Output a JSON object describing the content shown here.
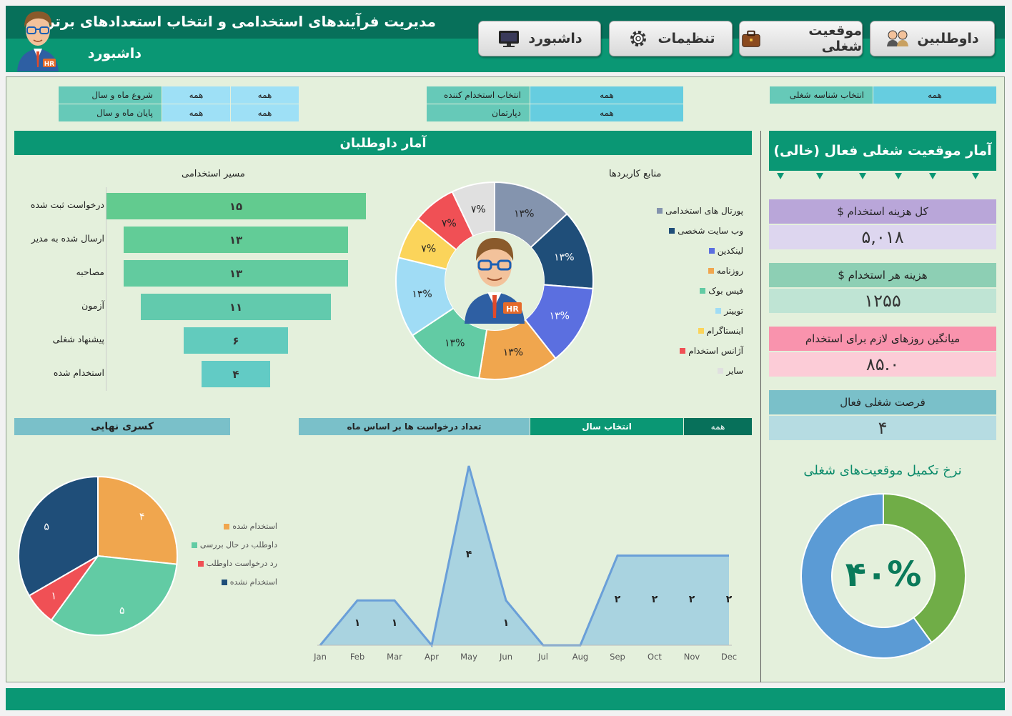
{
  "header": {
    "title": "مدیریت فرآیندهای استخدامی و انتخاب استعدادهای برتر",
    "subtitle": "داشبورد",
    "avatar_badge": "HR",
    "nav": [
      {
        "label": "داوطلبین",
        "icon": "candidates-icon"
      },
      {
        "label": "موقعیت شغلی",
        "icon": "briefcase-icon"
      },
      {
        "label": "تنظیمات",
        "icon": "gear-icon"
      },
      {
        "label": "داشبورد",
        "icon": "monitor-icon"
      }
    ]
  },
  "filters": {
    "start_label": "شروع ماه و سال",
    "start_month": "همه",
    "start_year": "همه",
    "end_label": "پایان ماه و سال",
    "end_month": "همه",
    "end_year": "همه",
    "hiring_manager_label": "انتخاب استخدام کننده",
    "hiring_manager_value": "همه",
    "department_label": "دپارتمان",
    "department_value": "همه",
    "job_id_label": "انتخاب شناسه شغلی",
    "job_id_value": "همه"
  },
  "candidate_stats": {
    "title": "آمار داوطلبان",
    "funnel_title": "مسیر استخدامی",
    "sources_title": "منابع کاربردها"
  },
  "funnel": [
    {
      "label": "درخواست ثبت شده",
      "value": "۱۵",
      "n": 15,
      "color": "#62cb8f"
    },
    {
      "label": "ارسال شده به مدیر",
      "value": "۱۳",
      "n": 13,
      "color": "#62cc97"
    },
    {
      "label": "مصاحبه",
      "value": "۱۳",
      "n": 13,
      "color": "#62cb9f"
    },
    {
      "label": "آزمون",
      "value": "۱۱",
      "n": 11,
      "color": "#62caad"
    },
    {
      "label": "پیشنهاد شغلی",
      "value": "۶",
      "n": 6,
      "color": "#62cbbd"
    },
    {
      "label": "استخدام شده",
      "value": "۴",
      "n": 4,
      "color": "#62cbc5"
    }
  ],
  "sources": {
    "center_badge": "HR",
    "items": [
      {
        "label": "پورتال های استخدامی",
        "pct": "۱۳%",
        "value": 13,
        "color": "#8494ae"
      },
      {
        "label": "وب سایت شخصی",
        "pct": "۱۳%",
        "value": 13,
        "color": "#1f4e79"
      },
      {
        "label": "لینکدین",
        "pct": "۱۳%",
        "value": 13,
        "color": "#5b6fe0"
      },
      {
        "label": "روزنامه",
        "pct": "۱۳%",
        "value": 13,
        "color": "#f0a64e"
      },
      {
        "label": "فیس بوک",
        "pct": "۱۳%",
        "value": 13,
        "color": "#62cba4"
      },
      {
        "label": "توییتر",
        "pct": "۱۳%",
        "value": 13,
        "color": "#a0dcf5"
      },
      {
        "label": "اینستاگرام",
        "pct": "۷%",
        "value": 7,
        "color": "#fbd45a"
      },
      {
        "label": "آژانس استخدام",
        "pct": "۷%",
        "value": 7,
        "color": "#f05055"
      },
      {
        "label": "سایر",
        "pct": "۷%",
        "value": 7,
        "color": "#e0e0e0"
      }
    ]
  },
  "final_shortfall": {
    "title": "کسری نهایی",
    "items": [
      {
        "label": "استخدام شده",
        "display": "۴",
        "value": 4,
        "color": "#f0a64e"
      },
      {
        "label": "داوطلب در حال بررسی",
        "display": "۵",
        "value": 5,
        "color": "#62cba4"
      },
      {
        "label": "رد درخواست داوطلب",
        "display": "۱",
        "value": 1,
        "color": "#f05055"
      },
      {
        "label": "استخدام نشده",
        "display": "۵",
        "value": 5,
        "color": "#1f4e79"
      }
    ]
  },
  "monthly": {
    "title": "تعداد درخواست ها بر اساس ماه",
    "year_label": "انتخاب سال",
    "year_value": "همه"
  },
  "chart_data": {
    "type": "area",
    "title": "تعداد درخواست ها بر اساس ماه",
    "categories": [
      "Jan",
      "Feb",
      "Mar",
      "Apr",
      "May",
      "Jun",
      "Jul",
      "Aug",
      "Sep",
      "Oct",
      "Nov",
      "Dec"
    ],
    "values": [
      0,
      1,
      1,
      0,
      4,
      1,
      0,
      0,
      2,
      2,
      2,
      2
    ],
    "labels": [
      "",
      "۱",
      "۱",
      "",
      "۴",
      "۱",
      "",
      "",
      "۲",
      "۲",
      "۲",
      "۲"
    ],
    "ylim": [
      0,
      4
    ]
  },
  "job_stats": {
    "title": "آمار موقعیت شغلی فعال (خالی)",
    "kpis": [
      {
        "label": "کل هزینه استخدام $",
        "value": "۵,۰۱۸",
        "label_bg": "#b9a6d9",
        "value_bg": "#ddd6ef"
      },
      {
        "label": "هزینه هر استخدام $",
        "value": "۱۲۵۵",
        "label_bg": "#8dcfb4",
        "value_bg": "#bfe4d4"
      },
      {
        "label": "میانگین روزهای لازم برای استخدام",
        "value": "۸۵.۰",
        "label_bg": "#f993ad",
        "value_bg": "#fcccd7"
      },
      {
        "label": "فرصت شغلی فعال",
        "value": "۴",
        "label_bg": "#7ac0c9",
        "value_bg": "#b6dce2"
      }
    ],
    "completion_title": "نرخ تکمیل موقعیت‌های شغلی",
    "completion_value": "۴۰%",
    "completion_fraction": 0.4,
    "completion_colors": {
      "filled": "#70ad47",
      "remaining": "#5b9bd5"
    }
  }
}
